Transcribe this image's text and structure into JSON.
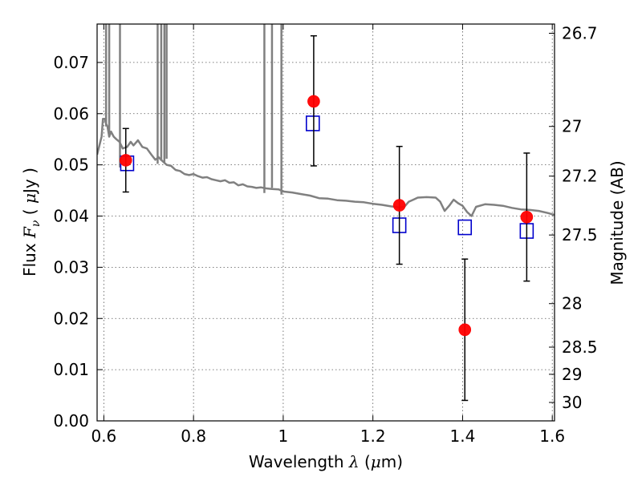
{
  "chart_data": {
    "type": "scatter",
    "xlabel": {
      "prefix": "Wavelength ",
      "symbol": "λ",
      "open": " (",
      "unit_symbol": "μ",
      "unit": "m)"
    },
    "ylabel": {
      "prefix": "Flux ",
      "symbol": "F",
      "subscript": "ν",
      "open": " ( ",
      "unit_symbol": "μ",
      "unit": "Jy )"
    },
    "y2label": "Magnitude (AB)",
    "xlim": [
      0.585,
      1.605
    ],
    "ylim": [
      0.0,
      0.0775
    ],
    "grid": true,
    "x_ticks": [
      0.6,
      0.8,
      1.0,
      1.2,
      1.4,
      1.6
    ],
    "x_tick_labels": [
      "0.6",
      "0.8",
      "1",
      "1.2",
      "1.4",
      "1.6"
    ],
    "y_ticks": [
      0.0,
      0.01,
      0.02,
      0.03,
      0.04,
      0.05,
      0.06,
      0.07
    ],
    "y_tick_labels": [
      "0.00",
      "0.01",
      "0.02",
      "0.03",
      "0.04",
      "0.05",
      "0.06",
      "0.07"
    ],
    "right_ticks": [
      {
        "label": "26.7",
        "flux": 0.0757
      },
      {
        "label": "27",
        "flux": 0.0575
      },
      {
        "label": "27.2",
        "flux": 0.0478
      },
      {
        "label": "27.5",
        "flux": 0.0363
      },
      {
        "label": "28",
        "flux": 0.0229
      },
      {
        "label": "28.5",
        "flux": 0.0144
      },
      {
        "label": "29",
        "flux": 0.0091
      },
      {
        "label": "30",
        "flux": 0.0036
      }
    ],
    "colors": {
      "observed": "#ff0000",
      "model_points": "#0000cc",
      "spectrum": "#808080",
      "errorbar": "#000000",
      "grid": "#555555"
    },
    "series": [
      {
        "kind": "observed",
        "points": [
          {
            "x": 0.649,
            "y": 0.0509,
            "yerr_low": 0.0062,
            "yerr_high": 0.0062
          },
          {
            "x": 1.068,
            "y": 0.0624,
            "yerr_low": 0.0126,
            "yerr_high": 0.0128
          },
          {
            "x": 1.259,
            "y": 0.0421,
            "yerr_low": 0.0115,
            "yerr_high": 0.0115
          },
          {
            "x": 1.405,
            "y": 0.0178,
            "yerr_low": 0.0138,
            "yerr_high": 0.0138
          },
          {
            "x": 1.543,
            "y": 0.0398,
            "yerr_low": 0.0125,
            "yerr_high": 0.0125
          }
        ]
      },
      {
        "kind": "model_points",
        "points": [
          {
            "x": 0.652,
            "y": 0.0503
          },
          {
            "x": 1.066,
            "y": 0.0581
          },
          {
            "x": 1.259,
            "y": 0.0382
          },
          {
            "x": 1.405,
            "y": 0.0378
          },
          {
            "x": 1.543,
            "y": 0.0371
          }
        ]
      },
      {
        "kind": "spectrum",
        "points": [
          [
            0.585,
            0.052
          ],
          [
            0.595,
            0.0555
          ],
          [
            0.598,
            0.059
          ],
          [
            0.602,
            0.059
          ],
          [
            0.605,
            0.058
          ],
          [
            0.608,
            0.0575
          ],
          [
            0.612,
            0.0555
          ],
          [
            0.616,
            0.0565
          ],
          [
            0.622,
            0.0555
          ],
          [
            0.628,
            0.055
          ],
          [
            0.635,
            0.0545
          ],
          [
            0.642,
            0.0532
          ],
          [
            0.652,
            0.0535
          ],
          [
            0.66,
            0.0545
          ],
          [
            0.666,
            0.0538
          ],
          [
            0.676,
            0.0548
          ],
          [
            0.686,
            0.0535
          ],
          [
            0.696,
            0.0532
          ],
          [
            0.706,
            0.052
          ],
          [
            0.715,
            0.051
          ],
          [
            0.722,
            0.0515
          ],
          [
            0.73,
            0.0508
          ],
          [
            0.74,
            0.05
          ],
          [
            0.75,
            0.0498
          ],
          [
            0.76,
            0.049
          ],
          [
            0.77,
            0.0488
          ],
          [
            0.78,
            0.0482
          ],
          [
            0.79,
            0.048
          ],
          [
            0.8,
            0.0482
          ],
          [
            0.81,
            0.0478
          ],
          [
            0.82,
            0.0475
          ],
          [
            0.83,
            0.0476
          ],
          [
            0.84,
            0.0472
          ],
          [
            0.85,
            0.047
          ],
          [
            0.86,
            0.0468
          ],
          [
            0.87,
            0.047
          ],
          [
            0.88,
            0.0465
          ],
          [
            0.89,
            0.0466
          ],
          [
            0.9,
            0.046
          ],
          [
            0.91,
            0.0462
          ],
          [
            0.92,
            0.0458
          ],
          [
            0.93,
            0.0457
          ],
          [
            0.94,
            0.0455
          ],
          [
            0.95,
            0.0456
          ],
          [
            0.962,
            0.0454
          ],
          [
            0.975,
            0.0453
          ],
          [
            0.99,
            0.0452
          ],
          [
            1.0,
            0.0448
          ],
          [
            1.02,
            0.0446
          ],
          [
            1.04,
            0.0443
          ],
          [
            1.06,
            0.044
          ],
          [
            1.08,
            0.0435
          ],
          [
            1.1,
            0.0434
          ],
          [
            1.12,
            0.0431
          ],
          [
            1.14,
            0.043
          ],
          [
            1.16,
            0.0428
          ],
          [
            1.18,
            0.0427
          ],
          [
            1.2,
            0.0424
          ],
          [
            1.22,
            0.0422
          ],
          [
            1.24,
            0.0419
          ],
          [
            1.26,
            0.0417
          ],
          [
            1.27,
            0.0418
          ],
          [
            1.28,
            0.0428
          ],
          [
            1.29,
            0.0432
          ],
          [
            1.3,
            0.0436
          ],
          [
            1.32,
            0.0437
          ],
          [
            1.34,
            0.0436
          ],
          [
            1.35,
            0.0428
          ],
          [
            1.36,
            0.041
          ],
          [
            1.37,
            0.042
          ],
          [
            1.38,
            0.0432
          ],
          [
            1.39,
            0.0425
          ],
          [
            1.4,
            0.042
          ],
          [
            1.41,
            0.0408
          ],
          [
            1.42,
            0.04
          ],
          [
            1.43,
            0.0418
          ],
          [
            1.45,
            0.0423
          ],
          [
            1.47,
            0.0422
          ],
          [
            1.49,
            0.042
          ],
          [
            1.51,
            0.0416
          ],
          [
            1.53,
            0.0413
          ],
          [
            1.55,
            0.0412
          ],
          [
            1.57,
            0.041
          ],
          [
            1.59,
            0.0406
          ],
          [
            1.605,
            0.0402
          ]
        ],
        "absorption_spikes": [
          {
            "x": 0.605,
            "low": 0.0575
          },
          {
            "x": 0.612,
            "low": 0.0555
          },
          {
            "x": 0.636,
            "low": 0.0495
          },
          {
            "x": 0.72,
            "low": 0.0502
          },
          {
            "x": 0.728,
            "low": 0.0508
          },
          {
            "x": 0.735,
            "low": 0.0505
          },
          {
            "x": 0.74,
            "low": 0.0512
          },
          {
            "x": 0.958,
            "low": 0.0445
          },
          {
            "x": 0.975,
            "low": 0.0455
          },
          {
            "x": 0.996,
            "low": 0.0442
          }
        ]
      }
    ]
  }
}
